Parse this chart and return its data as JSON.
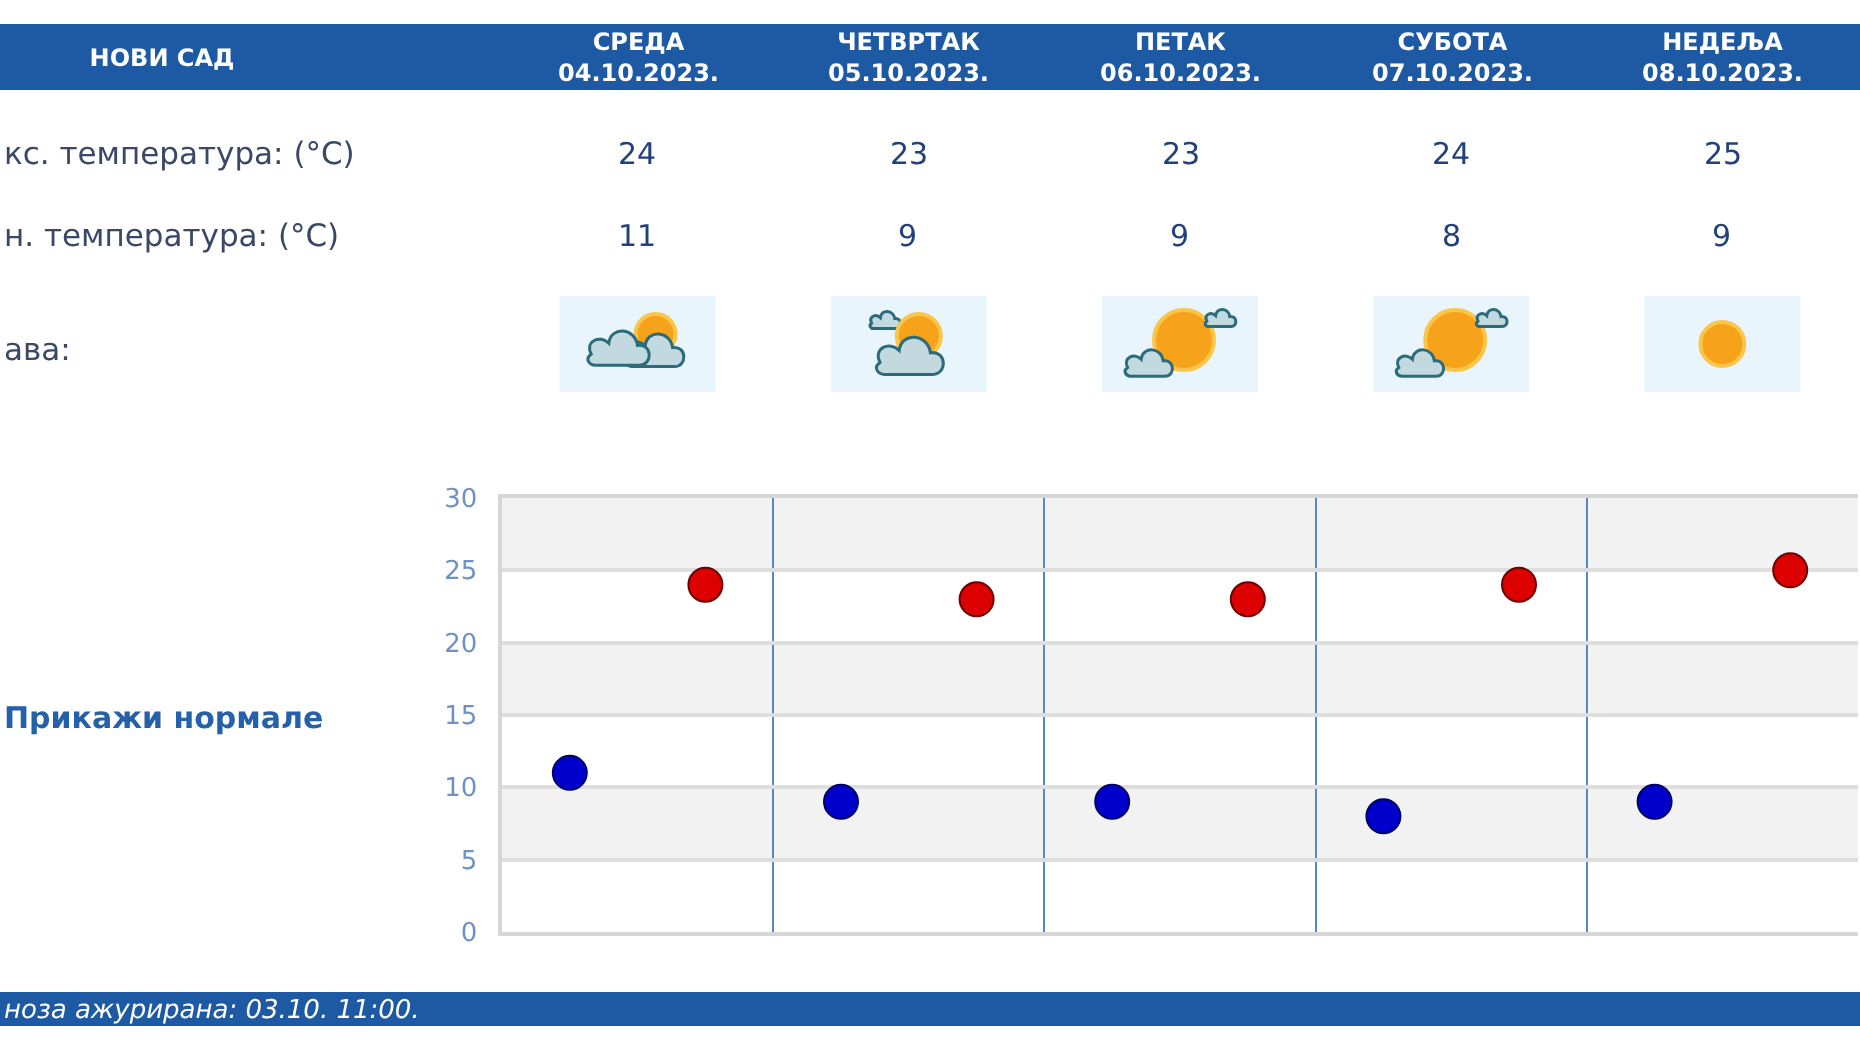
{
  "chart_data": {
    "type": "scatter",
    "title": "НОВИ САД",
    "categories": [
      null,
      null,
      null,
      null,
      null
    ],
    "series": [
      {
        "color": "#0000cc",
        "values": [
          11,
          9,
          9,
          8,
          9
        ]
      },
      {
        "color": "#dd0000",
        "values": [
          24,
          23,
          23,
          24,
          25
        ]
      }
    ],
    "ylim": [
      0,
      30
    ],
    "yticks": [
      0,
      5,
      10,
      15,
      20,
      25,
      30
    ],
    "grid": true,
    "marker": "circle",
    "data_labels": true,
    "tick_labels": "y",
    "bands": [
      {
        "axis": "y",
        "from": 5,
        "to": 10,
        "color": "#f2f2f2"
      },
      {
        "axis": "y",
        "from": 15,
        "to": 20,
        "color": "#f2f2f2"
      },
      {
        "axis": "y",
        "from": 25,
        "to": 30,
        "color": "#f2f2f2"
      }
    ],
    "annotations": [
      "СРЕДА\n04.10.2023.",
      "ЧЕТВРТАК\n05.10.2023.",
      "ПЕТАК\n06.10.2023.",
      "СУБОТА\n07.10.2023.",
      "НЕДЕЉА\n08.10.2023.",
      "кс. температура: (°C)",
      "н. температура: (°C)",
      "ава:",
      "Прикажи нормале",
      "ноза ажурирана: 03.10. 11:00."
    ]
  }
}
